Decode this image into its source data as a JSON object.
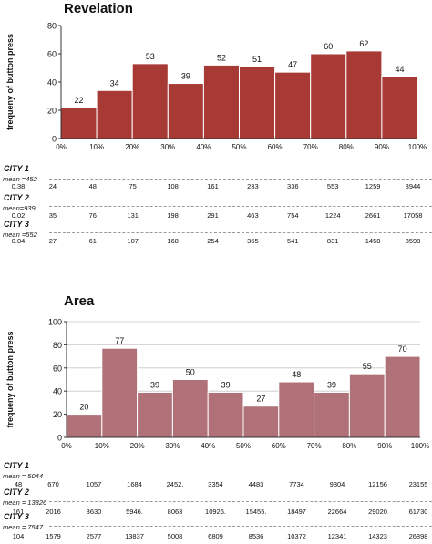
{
  "chart_data": [
    {
      "type": "bar",
      "title": "Revelation",
      "ylabel": "frequeny of button press",
      "xlabel": "",
      "xticks": [
        "0%",
        "10%",
        "20%",
        "30%",
        "40%",
        "50%",
        "60%",
        "70%",
        "80%",
        "90%",
        "100%"
      ],
      "values": [
        22,
        34,
        53,
        39,
        52,
        51,
        47,
        60,
        62,
        44
      ],
      "data_labels": [
        "22",
        "34",
        "53",
        "39",
        "52",
        "51",
        "47",
        "60",
        "62",
        "44"
      ],
      "ylim": [
        0,
        80
      ],
      "yticks": [
        0,
        20,
        40,
        60,
        80
      ],
      "grid": false,
      "bar_color": "#a83a36",
      "bar_edge": "#ffffff"
    },
    {
      "type": "bar",
      "title": "Area",
      "ylabel": "frequeny of button press",
      "xlabel": "",
      "xticks": [
        "0%",
        "10%",
        "20%",
        "30%",
        "40%",
        "50%",
        "60%",
        "70%",
        "80%",
        "90%",
        "100%"
      ],
      "values": [
        20,
        77,
        39,
        50,
        39,
        27,
        48,
        39,
        55,
        70
      ],
      "data_labels": [
        "20",
        "77",
        "39",
        "50",
        "39",
        "27",
        "48",
        "39",
        "55",
        "70"
      ],
      "ylim": [
        0,
        100
      ],
      "yticks": [
        0,
        20,
        40,
        60,
        80,
        100
      ],
      "grid": true,
      "bar_color": "#b07278",
      "bar_edge": "#ffffff"
    }
  ],
  "tables": [
    {
      "rows": [
        {
          "city": "CITY 1",
          "mean": "mean =452",
          "values": [
            "0.38",
            "24",
            "48",
            "75",
            "108",
            "161",
            "233",
            "336",
            "553",
            "1259",
            "8944"
          ]
        },
        {
          "city": "CITY 2",
          "mean": "mean=939",
          "values": [
            "0.02",
            "35",
            "76",
            "131",
            "198",
            "291",
            "463",
            "754",
            "1224",
            "2661",
            "17058"
          ]
        },
        {
          "city": "CITY 3",
          "mean": "mean =552",
          "values": [
            "0.04",
            "27",
            "61",
            "107",
            "168",
            "254",
            "365",
            "541",
            "831",
            "1458",
            "8598"
          ]
        }
      ]
    },
    {
      "rows": [
        {
          "city": "CITY 1",
          "mean": "mean = 5044",
          "values": [
            "48",
            "670",
            "1057",
            "1684",
            "2452.",
            "3354",
            "4483",
            "7734",
            "9304",
            "12156",
            "23155"
          ]
        },
        {
          "city": "CITY 2",
          "mean": "mean = 13826",
          "values": [
            "161",
            "2016",
            "3630",
            "5946.",
            "8063",
            "10926.",
            "15455.",
            "18497",
            "22664",
            "29020",
            "61730"
          ]
        },
        {
          "city": "CITY 3",
          "mean": "mean = 7547",
          "values": [
            "104",
            "1579",
            "2577",
            "13837",
            "5008",
            "6809",
            "8536",
            "10372",
            "12341",
            "14323",
            "26898"
          ]
        }
      ]
    }
  ]
}
